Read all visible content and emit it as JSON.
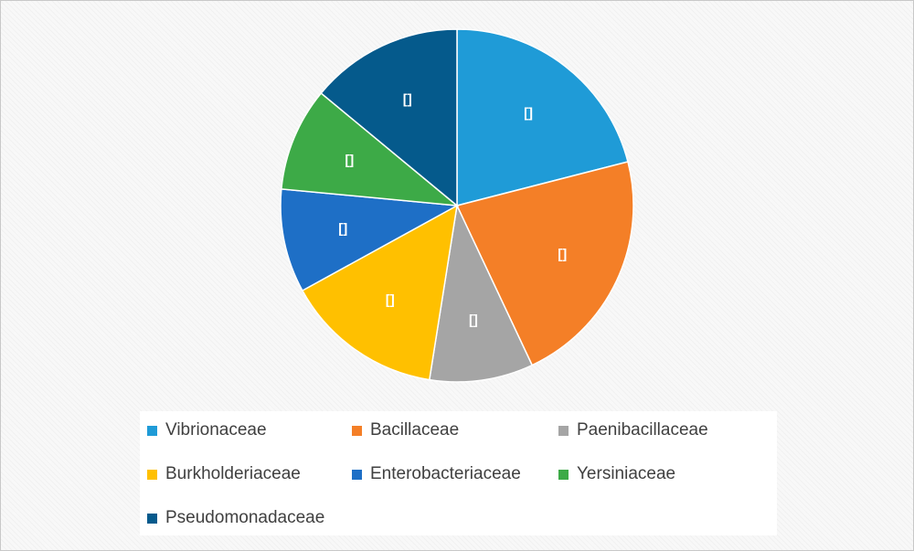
{
  "chart_data": {
    "type": "pie",
    "title": "",
    "legend_position": "bottom",
    "data_labels_shown": "[]",
    "slices": [
      {
        "name": "Vibrionaceae",
        "value": 21,
        "color": "#1F9BD7",
        "label": "[]"
      },
      {
        "name": "Bacillaceae",
        "value": 22,
        "color": "#F47F27",
        "label": "[]"
      },
      {
        "name": "Paenibacillaceae",
        "value": 9.5,
        "color": "#A5A5A5",
        "label": "[]"
      },
      {
        "name": "Burkholderiaceae",
        "value": 14.5,
        "color": "#FFC000",
        "label": "[]"
      },
      {
        "name": "Enterobacteriaceae",
        "value": 9.5,
        "color": "#1E6FC6",
        "label": "[]"
      },
      {
        "name": "Yersiniaceae",
        "value": 9.5,
        "color": "#3DAA47",
        "label": "[]"
      },
      {
        "name": "Pseudomonadaceae",
        "value": 14,
        "color": "#055A8C",
        "label": "[]"
      }
    ]
  }
}
